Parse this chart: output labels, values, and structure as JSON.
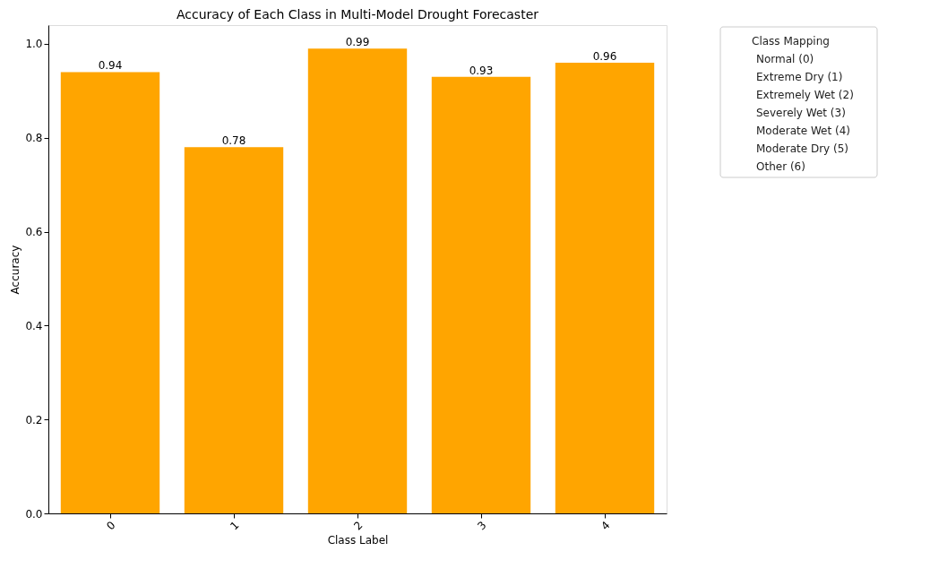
{
  "chart_data": {
    "type": "bar",
    "title": "Accuracy of Each Class in Multi-Model Drought Forecaster",
    "xlabel": "Class Label",
    "ylabel": "Accuracy",
    "categories": [
      "0",
      "1",
      "2",
      "3",
      "4"
    ],
    "values": [
      0.94,
      0.78,
      0.99,
      0.93,
      0.96
    ],
    "color": "#ffa500",
    "data_labels": true,
    "ylim": [
      0,
      1.04
    ],
    "yticks": [
      {
        "value": 0,
        "label": "0.0"
      },
      0.2,
      0.4,
      0.6,
      0.8,
      {
        "value": 1,
        "label": "1.0"
      }
    ],
    "grid": false,
    "legend_title": "Class Mapping",
    "annotations": [
      "Normal (0)",
      "Extreme Dry (1)",
      "Extremely Wet (2)",
      "Severely Wet (3)",
      "Moderate Wet (4)",
      "Moderate Dry (5)",
      "Other (6)"
    ]
  }
}
